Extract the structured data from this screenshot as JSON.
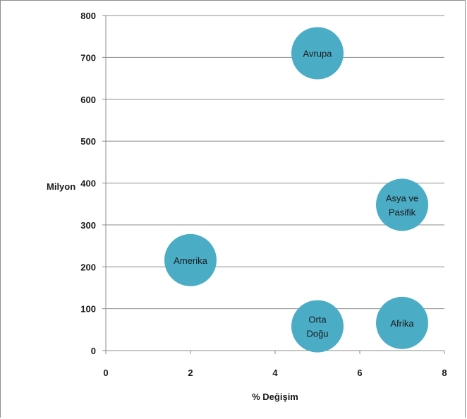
{
  "chart_data": {
    "type": "bubble",
    "title": "",
    "xlabel": "% Değişim",
    "ylabel": "Milyon",
    "xlim": [
      0,
      8
    ],
    "ylim": [
      0,
      800
    ],
    "x_ticks": [
      0,
      2,
      4,
      6,
      8
    ],
    "y_ticks": [
      0,
      100,
      200,
      300,
      400,
      500,
      600,
      700,
      800
    ],
    "grid": "horizontal",
    "bubble_color": "#4bacc6",
    "points": [
      {
        "label": "Avrupa",
        "x": 5,
        "y": 710
      },
      {
        "label": "Asya ve Pasifik",
        "x": 7,
        "y": 348
      },
      {
        "label": "Amerika",
        "x": 2,
        "y": 216
      },
      {
        "label": "Orta Doğu",
        "x": 5,
        "y": 58
      },
      {
        "label": "Afrika",
        "x": 7,
        "y": 66
      }
    ]
  }
}
